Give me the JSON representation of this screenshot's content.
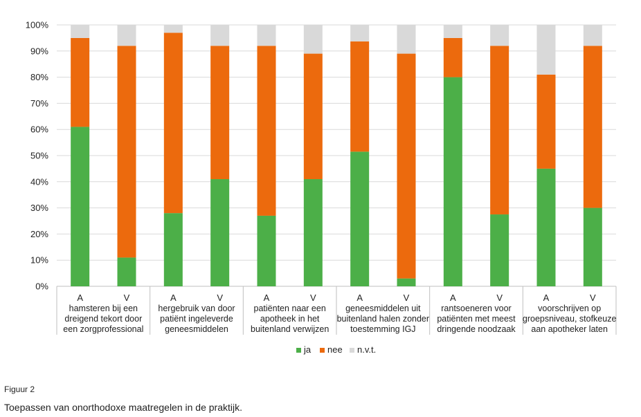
{
  "figure": {
    "label": "Figuur 2",
    "title": "Toepassen van onorthodoxe maatregelen in de praktijk."
  },
  "chart_data": {
    "type": "bar",
    "stacked": true,
    "ylim": [
      0,
      100
    ],
    "y_ticks": [
      "0%",
      "10%",
      "20%",
      "30%",
      "40%",
      "50%",
      "60%",
      "70%",
      "80%",
      "90%",
      "100%"
    ],
    "categories": [
      "A",
      "V",
      "A",
      "V",
      "A",
      "V",
      "A",
      "V",
      "A",
      "V",
      "A",
      "V"
    ],
    "groups": [
      [
        "hamsteren bij een",
        "dreigend tekort door",
        "een zorgprofessional"
      ],
      [
        "hergebruik van door",
        "patiënt ingeleverde",
        "geneesmiddelen"
      ],
      [
        "patiënten naar een",
        "apotheek in het",
        "buitenland verwijzen"
      ],
      [
        "geneesmiddelen uit",
        "buitenland halen zonder",
        "toestemming IGJ"
      ],
      [
        "rantsoeneren voor",
        "patiënten met meest",
        "dringende noodzaak"
      ],
      [
        "voorschrijven op",
        "groepsniveau, stofkeuze",
        "aan apotheker laten"
      ]
    ],
    "series": [
      {
        "name": "ja",
        "color": "#4caf48",
        "values": [
          61,
          11,
          28,
          41,
          27,
          41,
          51.5,
          3,
          80,
          27.5,
          45,
          30
        ]
      },
      {
        "name": "nee",
        "color": "#ec6a0d",
        "values": [
          34,
          81,
          69,
          51,
          65,
          48,
          42.2,
          86,
          15,
          64.5,
          36,
          62
        ]
      },
      {
        "name": "n.v.t.",
        "color": "#d9d9d9",
        "values": [
          5,
          8,
          3,
          8,
          8,
          11,
          6.3,
          11,
          5,
          8,
          19,
          8
        ]
      }
    ],
    "legend_position": "bottom",
    "grid": true
  }
}
